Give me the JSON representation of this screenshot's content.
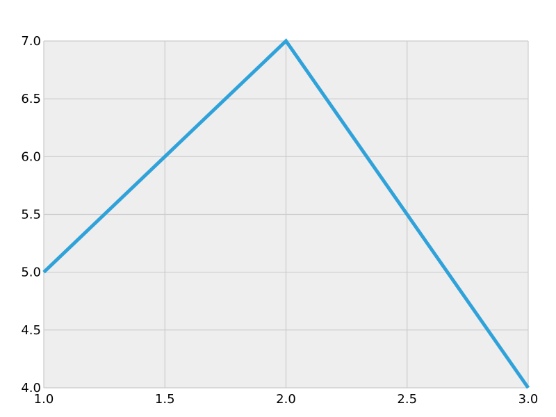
{
  "chart_data": {
    "type": "line",
    "title": "",
    "xlabel": "",
    "ylabel": "",
    "xlim": [
      1.0,
      3.0
    ],
    "ylim": [
      4.0,
      7.0
    ],
    "x_ticks": [
      "1.0",
      "1.5",
      "2.0",
      "2.5",
      "3.0"
    ],
    "y_ticks": [
      "4.0",
      "4.5",
      "5.0",
      "5.5",
      "6.0",
      "6.5",
      "7.0"
    ],
    "grid": true,
    "legend": "none",
    "colors": {
      "background": "#eeeeee",
      "grid": "#cbcbcb",
      "line": "#30a2da"
    },
    "series": [
      {
        "x": [
          1.0,
          2.0,
          3.0
        ],
        "y": [
          5.0,
          7.0,
          4.0
        ]
      }
    ]
  }
}
